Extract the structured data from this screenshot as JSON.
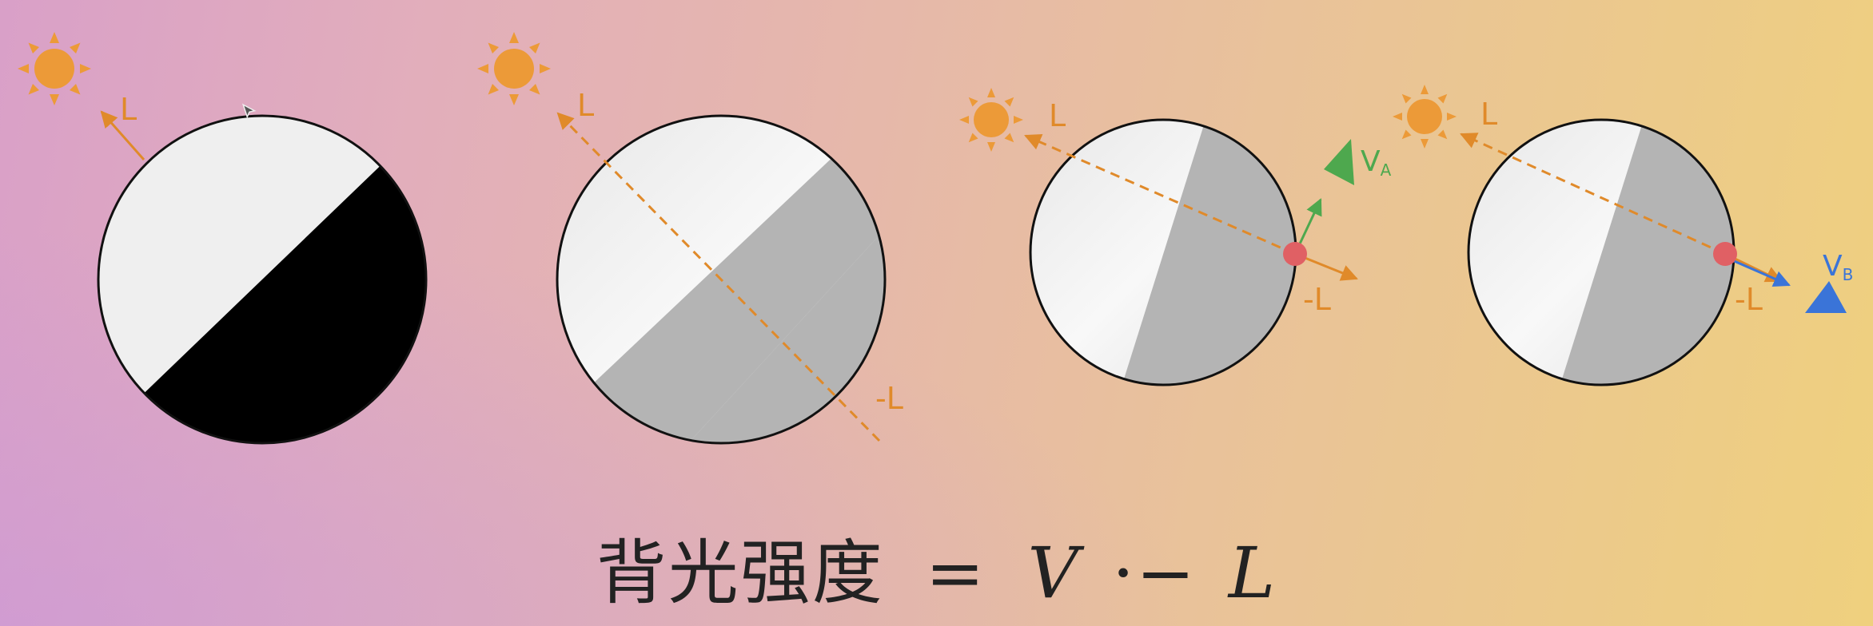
{
  "labels": {
    "L": "L",
    "neg_L": "-L",
    "V": "V",
    "A": "A",
    "B": "B"
  },
  "formula": {
    "text": "背光强度",
    "equals": "=",
    "V": "V",
    "op": "·−",
    "L": "L"
  },
  "colors": {
    "sun": "#ec9a38",
    "light_arrow": "#e08a2a",
    "view_a": "#4ea84e",
    "view_b": "#3a74d8",
    "point": "#e06064",
    "lit": "#efefef",
    "dark": "#000000",
    "shadow_grey": "#b4b4b4"
  },
  "icons": [
    "sun-icon",
    "cursor-icon",
    "view-cone-a-icon",
    "view-cone-b-icon"
  ]
}
